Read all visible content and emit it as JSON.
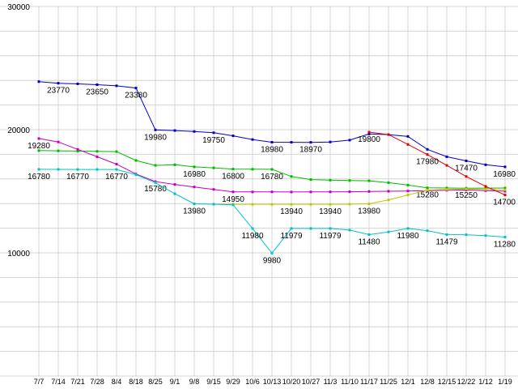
{
  "chart": {
    "background": "#ffffff",
    "grid_color": "#d4d4d4",
    "axis_text_color": "#000000",
    "y_ticks": [
      {
        "v": 30000,
        "label": "30000"
      },
      {
        "v": 20000,
        "label": "20000"
      },
      {
        "v": 10000,
        "label": "10000"
      }
    ]
  },
  "chart_data": {
    "type": "line",
    "title": "",
    "xlabel": "",
    "ylabel": "",
    "ylim": [
      0,
      30000
    ],
    "y_grid_step": 2000,
    "grid": true,
    "legend": "none",
    "x": [
      "7/7",
      "7/14",
      "7/21",
      "7/28",
      "8/4",
      "8/18",
      "8/25",
      "9/1",
      "9/8",
      "9/15",
      "9/29",
      "10/6",
      "10/13",
      "10/20",
      "10/27",
      "11/3",
      "11/10",
      "11/17",
      "11/25",
      "12/1",
      "12/8",
      "12/15",
      "12/22",
      "1/12",
      "1/19"
    ],
    "series": [
      {
        "name": "blue",
        "color": "#0000cc",
        "values": [
          23900,
          23770,
          23720,
          23650,
          23560,
          23380,
          19980,
          19930,
          19850,
          19750,
          19500,
          19200,
          18980,
          18975,
          18970,
          19000,
          19150,
          19650,
          19600,
          19450,
          18400,
          17800,
          17470,
          17150,
          16980
        ],
        "point_labels": [
          null,
          "23770",
          null,
          "23650",
          null,
          "23380",
          "19980",
          null,
          null,
          "19750",
          null,
          null,
          "18980",
          null,
          "18970",
          null,
          null,
          null,
          null,
          null,
          null,
          null,
          "17470",
          null,
          "16980"
        ]
      },
      {
        "name": "green",
        "color": "#00bc00",
        "values": [
          18300,
          18280,
          18260,
          18240,
          18220,
          17500,
          17100,
          17150,
          16980,
          16900,
          16800,
          16790,
          16780,
          16200,
          15950,
          15900,
          15870,
          15850,
          15700,
          15500,
          15280,
          15265,
          15250,
          15255,
          15260
        ],
        "point_labels": [
          null,
          null,
          null,
          null,
          null,
          null,
          null,
          null,
          "16980",
          null,
          "16800",
          null,
          "16780",
          null,
          null,
          null,
          null,
          null,
          null,
          null,
          "15280",
          null,
          "15250",
          null,
          null
        ]
      },
      {
        "name": "magenta",
        "color": "#c400c4",
        "values": [
          19280,
          19000,
          18400,
          17800,
          17200,
          16400,
          15780,
          15550,
          15350,
          15150,
          14950,
          14945,
          14950,
          14940,
          14945,
          14950,
          14960,
          14980,
          15000,
          15020,
          15050,
          15080,
          15100,
          15050,
          15000
        ],
        "point_labels": [
          "19280",
          null,
          null,
          null,
          null,
          null,
          "15780",
          null,
          null,
          null,
          "14950",
          null,
          null,
          null,
          null,
          null,
          null,
          null,
          null,
          null,
          null,
          null,
          null,
          null,
          null
        ]
      },
      {
        "name": "dark-yellow",
        "color": "#c8c400",
        "values": [
          null,
          null,
          null,
          null,
          null,
          null,
          null,
          null,
          null,
          13945,
          13942,
          13940,
          13940,
          13940,
          13941,
          13940,
          13950,
          13980,
          14300,
          14700,
          15100,
          15150,
          15180,
          15150,
          15120
        ],
        "point_labels": [
          null,
          null,
          null,
          null,
          null,
          null,
          null,
          null,
          null,
          null,
          null,
          null,
          null,
          "13940",
          null,
          "13940",
          null,
          "13980",
          null,
          null,
          null,
          null,
          null,
          null,
          null
        ]
      },
      {
        "name": "red",
        "color": "#dd0000",
        "values": [
          null,
          null,
          null,
          null,
          null,
          null,
          null,
          null,
          null,
          null,
          null,
          null,
          null,
          null,
          null,
          null,
          null,
          19800,
          19600,
          18800,
          17980,
          17100,
          16200,
          15400,
          14700
        ],
        "point_labels": [
          null,
          null,
          null,
          null,
          null,
          null,
          null,
          null,
          null,
          null,
          null,
          null,
          null,
          null,
          null,
          null,
          null,
          "19800",
          null,
          null,
          "17980",
          null,
          null,
          null,
          "14700"
        ]
      },
      {
        "name": "cyan",
        "color": "#00c4c4",
        "values": [
          16780,
          16775,
          16770,
          16770,
          16770,
          16350,
          15700,
          14800,
          13980,
          13950,
          13900,
          11980,
          9980,
          11979,
          11979,
          11979,
          11850,
          11480,
          11700,
          11980,
          11800,
          11479,
          11470,
          11400,
          11280
        ],
        "point_labels": [
          "16780",
          null,
          "16770",
          null,
          "16770",
          null,
          null,
          null,
          "13980",
          null,
          null,
          "11980",
          "9980",
          "11979",
          null,
          "11979",
          null,
          "11480",
          null,
          "11980",
          null,
          "11479",
          null,
          null,
          "11280"
        ]
      }
    ]
  }
}
